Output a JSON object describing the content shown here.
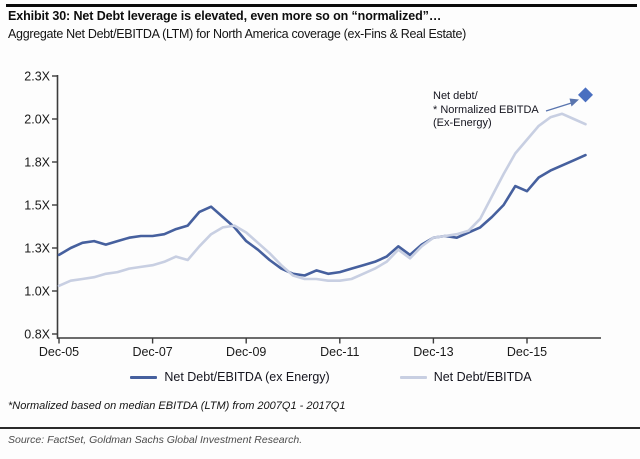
{
  "chart_data": {
    "type": "line",
    "title": "Exhibit 30: Net Debt leverage is elevated, even more so on “normalized”…",
    "subtitle": "Aggregate Net Debt/EBITDA (LTM) for North America coverage (ex-Fins & Real Estate)",
    "x_unit": "quarter",
    "quarters": [
      "2005Q4",
      "2006Q1",
      "2006Q2",
      "2006Q3",
      "2006Q4",
      "2007Q1",
      "2007Q2",
      "2007Q3",
      "2007Q4",
      "2008Q1",
      "2008Q2",
      "2008Q3",
      "2008Q4",
      "2009Q1",
      "2009Q2",
      "2009Q3",
      "2009Q4",
      "2010Q1",
      "2010Q2",
      "2010Q3",
      "2010Q4",
      "2011Q1",
      "2011Q2",
      "2011Q3",
      "2011Q4",
      "2012Q1",
      "2012Q2",
      "2012Q3",
      "2012Q4",
      "2013Q1",
      "2013Q2",
      "2013Q3",
      "2013Q4",
      "2014Q1",
      "2014Q2",
      "2014Q3",
      "2014Q4",
      "2015Q1",
      "2015Q2",
      "2015Q3",
      "2015Q4",
      "2016Q1",
      "2016Q2",
      "2016Q3",
      "2016Q4",
      "2017Q1"
    ],
    "x_ticks": {
      "labels": [
        "Dec-05",
        "Dec-07",
        "Dec-09",
        "Dec-11",
        "Dec-13",
        "Dec-15"
      ],
      "quarter_indices": [
        0,
        8,
        16,
        24,
        32,
        40
      ]
    },
    "y_ticks": {
      "labels": [
        "0.8X",
        "1.0X",
        "1.3X",
        "1.5X",
        "1.8X",
        "2.0X",
        "2.3X"
      ],
      "values": [
        0.75,
        1.0,
        1.25,
        1.5,
        1.75,
        2.0,
        2.25
      ]
    },
    "ylim": [
      0.73,
      2.28
    ],
    "grid": false,
    "legend_position": "bottom",
    "series": [
      {
        "name": "Net Debt/EBITDA (ex Energy)",
        "color": "#46609e",
        "values": [
          1.21,
          1.25,
          1.28,
          1.29,
          1.27,
          1.29,
          1.31,
          1.32,
          1.32,
          1.33,
          1.36,
          1.38,
          1.46,
          1.49,
          1.43,
          1.37,
          1.29,
          1.24,
          1.18,
          1.13,
          1.1,
          1.09,
          1.12,
          1.1,
          1.11,
          1.13,
          1.15,
          1.17,
          1.2,
          1.26,
          1.21,
          1.27,
          1.31,
          1.32,
          1.31,
          1.34,
          1.37,
          1.43,
          1.5,
          1.61,
          1.58,
          1.66,
          1.7,
          1.73,
          1.76,
          1.79
        ]
      },
      {
        "name": "Net Debt/EBITDA",
        "color": "#c8cfe2",
        "values": [
          1.03,
          1.06,
          1.07,
          1.08,
          1.1,
          1.11,
          1.13,
          1.14,
          1.15,
          1.17,
          1.2,
          1.18,
          1.26,
          1.33,
          1.37,
          1.38,
          1.34,
          1.28,
          1.22,
          1.15,
          1.09,
          1.07,
          1.07,
          1.06,
          1.06,
          1.07,
          1.1,
          1.13,
          1.17,
          1.24,
          1.19,
          1.26,
          1.31,
          1.32,
          1.33,
          1.35,
          1.42,
          1.55,
          1.68,
          1.8,
          1.88,
          1.96,
          2.01,
          2.03,
          2.0,
          1.97
        ]
      }
    ],
    "point_marker": {
      "label": "Net debt/\n* Normalized EBITDA\n(Ex-Energy)",
      "shape": "diamond",
      "color": "#4a6fc0",
      "quarter": "2017Q1",
      "value": 2.14
    },
    "footnote": "*Normalized based on median EBITDA (LTM) from 2007Q1 - 2017Q1",
    "source": "Source: FactSet, Goldman Sachs Global Investment Research."
  }
}
